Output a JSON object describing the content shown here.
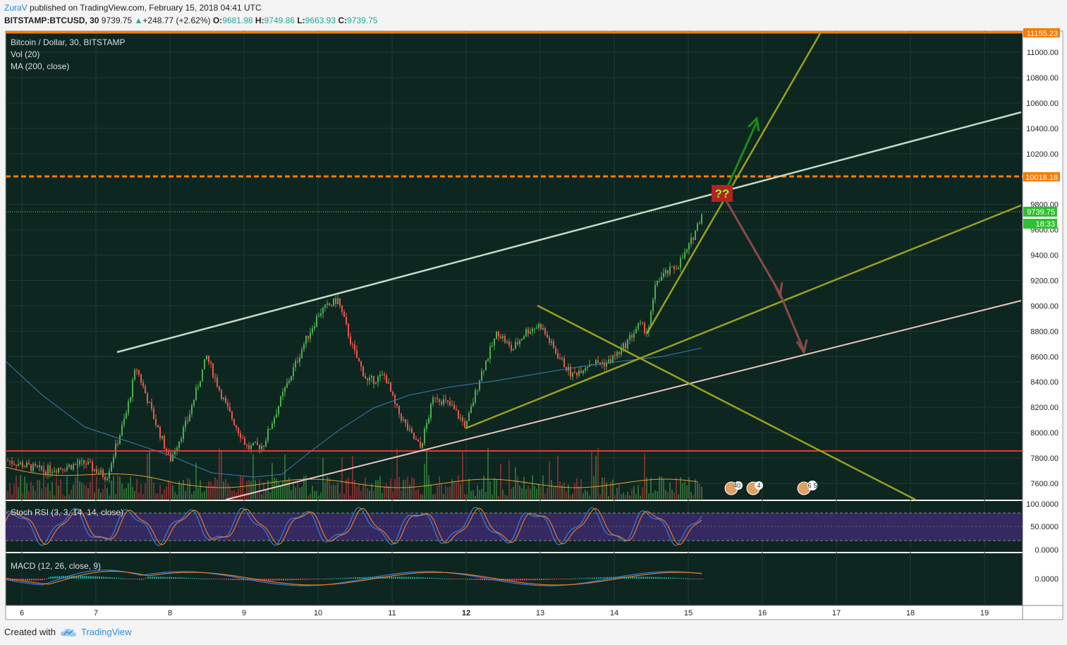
{
  "header": {
    "author": "ZuraV",
    "published_text": "published on TradingView.com, February 15, 2018 04:41 UTC",
    "symbol": "BITSTAMP:BTCUSD, 30",
    "price": "9739.75",
    "change": "+248.77 (+2.62%)",
    "o_label": "O:",
    "o_value": "9681.98",
    "h_label": "H:",
    "h_value": "9749.86",
    "l_label": "L:",
    "l_value": "9663.93",
    "c_label": "C:",
    "c_value": "9739.75"
  },
  "legend": {
    "title": "Bitcoin / Dollar, 30, BITSTAMP",
    "vol": "Vol (20)",
    "ma": "MA (200, close)"
  },
  "price_axis": {
    "ticks": [
      "11000.00",
      "10800.00",
      "10600.00",
      "10400.00",
      "10200.00",
      "9800.00",
      "9600.00",
      "9400.00",
      "9200.00",
      "9000.00",
      "8800.00",
      "8600.00",
      "8400.00",
      "8200.00",
      "8000.00",
      "7800.00",
      "7600.00"
    ],
    "tick_values": [
      11000,
      10800,
      10600,
      10400,
      10200,
      9800,
      9600,
      9400,
      9200,
      9000,
      8800,
      8600,
      8400,
      8200,
      8000,
      7800,
      7600
    ],
    "level_top": "11155.23",
    "level_mid": "10018.18",
    "last_price": "9739.75",
    "countdown": "18:33"
  },
  "x_axis": {
    "labels": [
      "6",
      "7",
      "8",
      "9",
      "10",
      "11",
      "12",
      "13",
      "14",
      "15",
      "16",
      "17",
      "18",
      "19"
    ],
    "bold": [
      "12"
    ]
  },
  "stoch": {
    "title": "Stoch RSI (3, 3, 14, 14, close)",
    "ticks": [
      "100.0000",
      "50.0000",
      "0.0000"
    ]
  },
  "macd": {
    "title": "MACD (12, 26, close, 9)",
    "ticks": [
      "0.0000"
    ]
  },
  "annotations": {
    "question": "??",
    "events": [
      "40",
      "4",
      "6",
      "5"
    ]
  },
  "colors": {
    "background": "#0d2620",
    "up_candle": "#4caf50",
    "down_candle": "#ef5350",
    "orange_level": "#f57c00",
    "red_level": "#e53935",
    "channel_white": "#c8d8c8",
    "olive_line": "#9aa01e",
    "pink_line": "#f3c6c6",
    "ma_line": "#3d7ab8"
  },
  "footer": {
    "created_with": "Created with",
    "brand": "TradingView"
  }
}
